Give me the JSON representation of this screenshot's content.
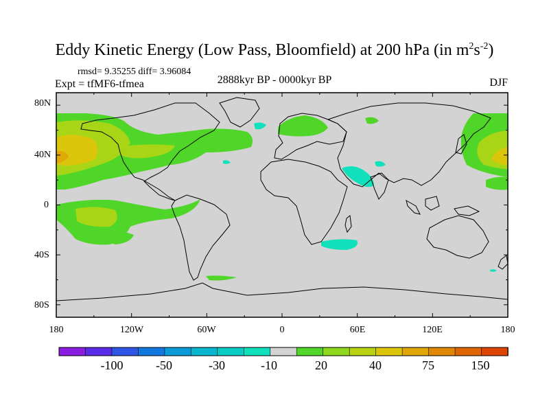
{
  "title": {
    "main": "Eddy Kinetic Energy (Low Pass, Bloomfield) at 200 hPa (in m",
    "sup1": "2",
    "mid": "s",
    "sup2": "-2",
    "end": ")"
  },
  "subtitles": {
    "stats": "rmsd= 9.35255 diff= 3.96084",
    "experiment": "Expt = tfMF6-tfmea",
    "period": "2888kyr BP - 0000kyr BP",
    "season": "DJF"
  },
  "axes": {
    "lat_labels": [
      "80N",
      "40N",
      "0",
      "40S",
      "80S"
    ],
    "lon_labels": [
      "180",
      "120W",
      "60W",
      "0",
      "60E",
      "120E",
      "180"
    ]
  },
  "colorbar": {
    "colors": [
      "#8a1de0",
      "#5b2ce8",
      "#2e55e6",
      "#1278e0",
      "#0a9ad8",
      "#08b6d0",
      "#06ccc4",
      "#10e0bc",
      "#d3d3d3",
      "#50d628",
      "#8ed81e",
      "#b8d212",
      "#dcc60c",
      "#e0a806",
      "#e08804",
      "#e06604",
      "#e04404"
    ],
    "labels": [
      "-100",
      "-50",
      "-30",
      "-10",
      "20",
      "40",
      "75",
      "150"
    ]
  },
  "palette": {
    "ocean": "#d3d3d3",
    "green": "#50d628",
    "lime": "#a8d616",
    "yellow": "#dcc60c",
    "orange": "#e0a806",
    "cyan": "#10e0bc"
  }
}
